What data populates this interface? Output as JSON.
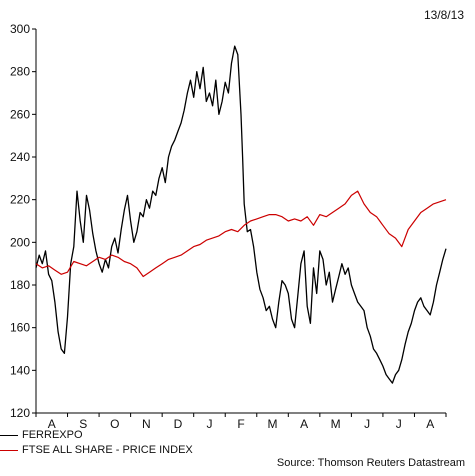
{
  "date_label": "13/8/13",
  "source": "Source: Thomson Reuters Datastream",
  "colors": {
    "ferrexpo": "#000000",
    "ftse": "#cc0000",
    "axis": "#000000"
  },
  "chart_data": {
    "type": "line",
    "ylim": [
      120,
      300
    ],
    "y_ticks": [
      "120",
      "140",
      "160",
      "180",
      "200",
      "220",
      "240",
      "260",
      "280",
      "300"
    ],
    "x_range": [
      0,
      13
    ],
    "x_ticks": [
      {
        "label": "A",
        "x": 0.5
      },
      {
        "label": "S",
        "x": 1.5
      },
      {
        "label": "O",
        "x": 2.5
      },
      {
        "label": "N",
        "x": 3.5
      },
      {
        "label": "D",
        "x": 4.5
      },
      {
        "label": "J",
        "x": 5.5
      },
      {
        "label": "F",
        "x": 6.5
      },
      {
        "label": "M",
        "x": 7.5
      },
      {
        "label": "A",
        "x": 8.5
      },
      {
        "label": "M",
        "x": 9.5
      },
      {
        "label": "J",
        "x": 10.5
      },
      {
        "label": "J",
        "x": 11.5
      },
      {
        "label": "A",
        "x": 12.5
      }
    ],
    "series": [
      {
        "name": "FERREXPO",
        "color": "#000000",
        "x": [
          0.0,
          0.1,
          0.2,
          0.3,
          0.4,
          0.5,
          0.6,
          0.7,
          0.8,
          0.9,
          1.0,
          1.1,
          1.2,
          1.3,
          1.4,
          1.5,
          1.6,
          1.7,
          1.8,
          1.9,
          2.0,
          2.1,
          2.2,
          2.3,
          2.4,
          2.5,
          2.6,
          2.7,
          2.8,
          2.9,
          3.0,
          3.1,
          3.2,
          3.3,
          3.4,
          3.5,
          3.6,
          3.7,
          3.8,
          3.9,
          4.0,
          4.1,
          4.2,
          4.3,
          4.4,
          4.5,
          4.6,
          4.7,
          4.8,
          4.9,
          5.0,
          5.1,
          5.2,
          5.3,
          5.4,
          5.5,
          5.6,
          5.7,
          5.8,
          5.9,
          6.0,
          6.1,
          6.2,
          6.3,
          6.4,
          6.5,
          6.55,
          6.6,
          6.7,
          6.8,
          6.9,
          7.0,
          7.1,
          7.2,
          7.3,
          7.4,
          7.5,
          7.6,
          7.7,
          7.8,
          7.9,
          8.0,
          8.1,
          8.2,
          8.3,
          8.4,
          8.5,
          8.6,
          8.7,
          8.8,
          8.9,
          9.0,
          9.1,
          9.2,
          9.3,
          9.4,
          9.5,
          9.6,
          9.7,
          9.8,
          9.9,
          10.0,
          10.1,
          10.2,
          10.3,
          10.4,
          10.5,
          10.6,
          10.7,
          10.8,
          10.9,
          11.0,
          11.1,
          11.2,
          11.3,
          11.4,
          11.5,
          11.6,
          11.7,
          11.8,
          11.9,
          12.0,
          12.1,
          12.2,
          12.3,
          12.4,
          12.5,
          12.6,
          12.7,
          12.8,
          12.9,
          13.0
        ],
        "values": [
          188,
          194,
          190,
          196,
          185,
          182,
          172,
          158,
          150,
          148,
          165,
          190,
          198,
          224,
          210,
          200,
          222,
          215,
          204,
          196,
          190,
          186,
          192,
          188,
          198,
          202,
          195,
          206,
          215,
          222,
          210,
          200,
          205,
          214,
          212,
          220,
          216,
          224,
          222,
          230,
          235,
          228,
          240,
          245,
          248,
          252,
          256,
          262,
          270,
          276,
          268,
          280,
          272,
          282,
          266,
          270,
          264,
          276,
          260,
          266,
          275,
          270,
          284,
          292,
          288,
          260,
          240,
          218,
          205,
          206,
          198,
          186,
          178,
          174,
          168,
          170,
          164,
          160,
          172,
          182,
          180,
          176,
          164,
          160,
          175,
          190,
          196,
          170,
          162,
          188,
          176,
          196,
          192,
          180,
          186,
          172,
          178,
          184,
          190,
          185,
          188,
          180,
          176,
          172,
          170,
          168,
          160,
          156,
          150,
          148,
          145,
          142,
          138,
          136,
          134,
          138,
          140,
          145,
          152,
          158,
          162,
          168,
          172,
          174,
          170,
          168,
          166,
          172,
          180,
          186,
          192,
          197
        ]
      },
      {
        "name": "FTSE ALL SHARE - PRICE INDEX",
        "color": "#cc0000",
        "x": [
          0.0,
          0.2,
          0.4,
          0.6,
          0.8,
          1.0,
          1.2,
          1.4,
          1.6,
          1.8,
          2.0,
          2.2,
          2.4,
          2.6,
          2.8,
          3.0,
          3.2,
          3.4,
          3.6,
          3.8,
          4.0,
          4.2,
          4.4,
          4.6,
          4.8,
          5.0,
          5.2,
          5.4,
          5.6,
          5.8,
          6.0,
          6.2,
          6.4,
          6.6,
          6.8,
          7.0,
          7.2,
          7.4,
          7.6,
          7.8,
          8.0,
          8.2,
          8.4,
          8.6,
          8.8,
          9.0,
          9.2,
          9.4,
          9.6,
          9.8,
          10.0,
          10.2,
          10.4,
          10.6,
          10.8,
          11.0,
          11.2,
          11.4,
          11.6,
          11.8,
          12.0,
          12.2,
          12.4,
          12.6,
          12.8,
          13.0
        ],
        "values": [
          190,
          188,
          189,
          187,
          185,
          186,
          191,
          190,
          189,
          191,
          193,
          192,
          194,
          193,
          191,
          190,
          188,
          184,
          186,
          188,
          190,
          192,
          193,
          194,
          196,
          198,
          199,
          201,
          202,
          203,
          205,
          206,
          205,
          208,
          210,
          211,
          212,
          213,
          213,
          212,
          210,
          211,
          210,
          212,
          208,
          213,
          212,
          214,
          216,
          218,
          222,
          224,
          218,
          214,
          212,
          208,
          204,
          202,
          198,
          206,
          210,
          214,
          216,
          218,
          219,
          220
        ]
      }
    ]
  }
}
